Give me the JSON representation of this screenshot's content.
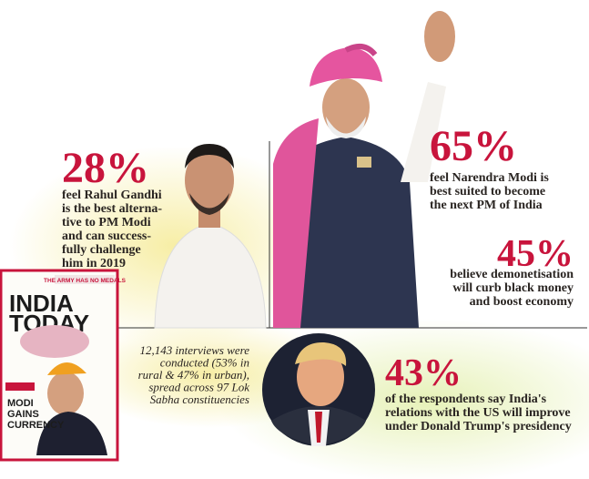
{
  "stats": [
    {
      "value": "28%",
      "lines": [
        "feel Rahul Gandhi",
        "is the best alterna-",
        "tive to PM Modi",
        "and can success-",
        "fully challenge",
        "him in 2019"
      ]
    },
    {
      "value": "65%",
      "lines": [
        "feel Narendra Modi is",
        "best suited to become",
        "the next PM of India"
      ]
    },
    {
      "value": "45%",
      "lines": [
        "believe demonetisation",
        "will curb black money",
        "and boost economy"
      ]
    },
    {
      "value": "43%",
      "lines": [
        "of the respondents say India's",
        "relations with the US  will improve",
        "under Donald Trump's presidency"
      ]
    }
  ],
  "note": [
    "12,143 interviews were",
    "conducted (53% in",
    "rural & 47% in urban),",
    "spread across 97 Lok",
    "Sabha constituencies"
  ],
  "cover": {
    "banner": "THE ARMY HAS NO MEDALS",
    "masthead": [
      "INDIA",
      "TODAY"
    ],
    "headline": [
      "MODI",
      "GAINS",
      "CURRENCY"
    ]
  }
}
